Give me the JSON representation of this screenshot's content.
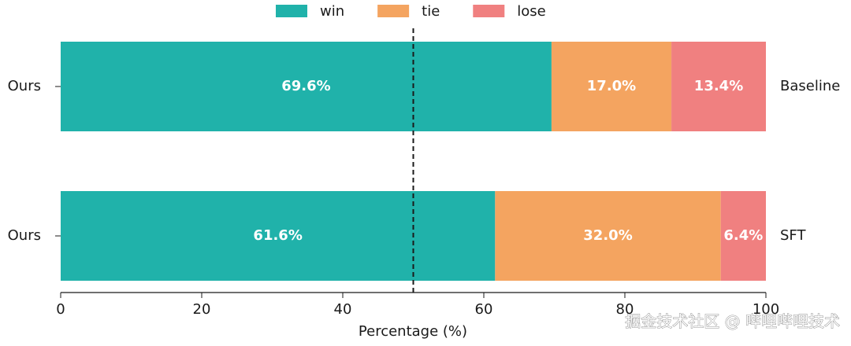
{
  "chart_data": {
    "type": "stacked_barh",
    "categories": [
      "Ours",
      "Ours"
    ],
    "right_labels": [
      "Baseline",
      "SFT"
    ],
    "series": [
      {
        "name": "win",
        "color": "#20b2aa",
        "values": [
          69.6,
          61.6
        ],
        "value_labels": [
          "69.6%",
          "61.6%"
        ]
      },
      {
        "name": "tie",
        "color": "#f4a460",
        "values": [
          17.0,
          32.0
        ],
        "value_labels": [
          "17.0%",
          "32.0%"
        ]
      },
      {
        "name": "lose",
        "color": "#f08080",
        "values": [
          13.4,
          6.4
        ],
        "value_labels": [
          "13.4%",
          "6.4%"
        ]
      }
    ],
    "xlim": [
      0,
      100
    ],
    "xticks": [
      0,
      20,
      40,
      60,
      80,
      100
    ],
    "xlabel": "Percentage (%)",
    "reference_line": 50,
    "legend": "upper center"
  },
  "watermark": "掘金技术社区 @ 哔哩哔哩技术"
}
